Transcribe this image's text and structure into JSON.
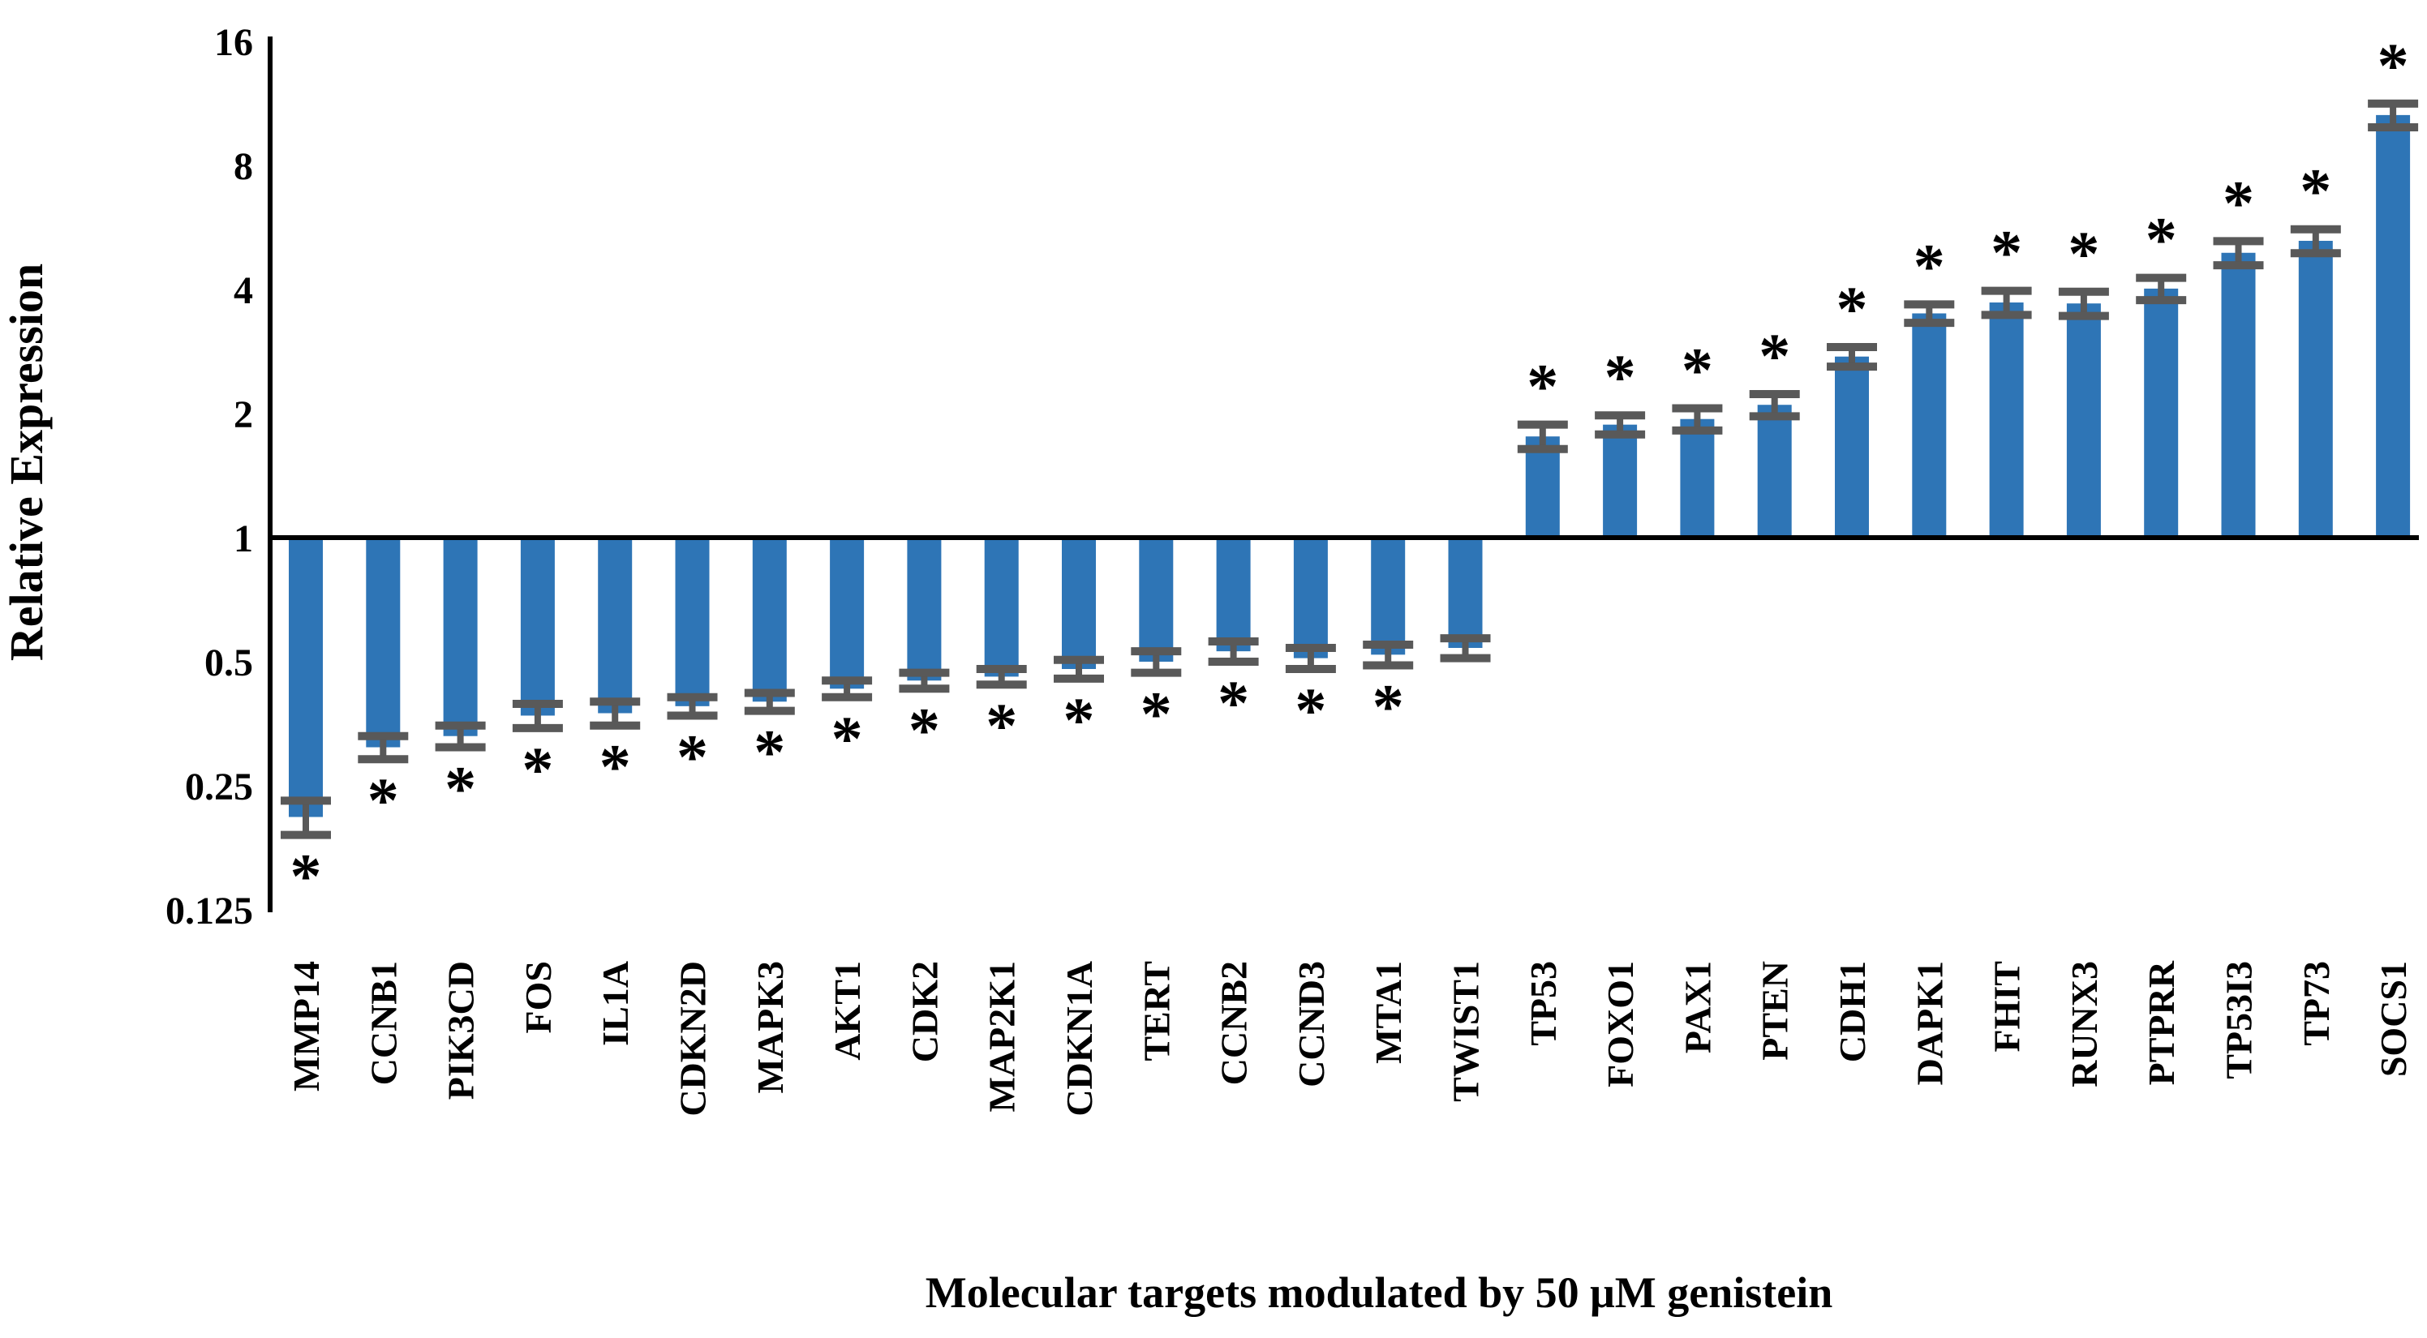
{
  "figure": {
    "background": "#ffffff",
    "bar_color": "#2E75B6",
    "error_bar_color": "#595959",
    "asterisk_color": "#3F3F3F",
    "axis_color": "#000000"
  },
  "chart_data": {
    "type": "bar",
    "title": "",
    "xlabel": "Molecular targets modulated by 50 μM genistein",
    "ylabel": "Relative Expression",
    "y_scale": "log2",
    "baseline_value": 1,
    "ylim": [
      0.125,
      16
    ],
    "y_ticks": [
      16,
      8,
      4,
      2,
      1,
      0.5,
      0.25,
      0.125
    ],
    "y_tick_labels": [
      "16",
      "8",
      "4",
      "2",
      "1",
      "0.5",
      "0.25",
      "0.125"
    ],
    "grid": false,
    "legend": "none",
    "significance_marker": "*",
    "categories": [
      "MMP14",
      "CCNB1",
      "PIK3CD",
      "FOS",
      "IL1A",
      "CDKN2D",
      "MAPK3",
      "AKT1",
      "CDK2",
      "MAP2K1",
      "CDKN1A",
      "TERT",
      "CCNB2",
      "CCND3",
      "MTA1",
      "TWIST1",
      "TP53",
      "FOXO1",
      "PAX1",
      "PTEN",
      "CDH1",
      "DAPK1",
      "FHIT",
      "RUNX3",
      "PTPRR",
      "TP53I3",
      "TP73",
      "SOCS1"
    ],
    "values": [
      0.21,
      0.31,
      0.33,
      0.37,
      0.375,
      0.39,
      0.4,
      0.43,
      0.45,
      0.46,
      0.48,
      0.5,
      0.53,
      0.51,
      0.52,
      0.54,
      1.76,
      1.88,
      1.94,
      2.1,
      2.75,
      3.5,
      3.72,
      3.7,
      4.02,
      4.91,
      5.25,
      10.6
    ],
    "errors": [
      0.02,
      0.02,
      0.02,
      0.025,
      0.025,
      0.02,
      0.02,
      0.02,
      0.02,
      0.02,
      0.025,
      0.03,
      0.03,
      0.03,
      0.03,
      0.03,
      0.12,
      0.1,
      0.12,
      0.13,
      0.15,
      0.18,
      0.25,
      0.25,
      0.25,
      0.33,
      0.35,
      0.7
    ],
    "significant": [
      true,
      true,
      true,
      true,
      true,
      true,
      true,
      true,
      true,
      true,
      true,
      true,
      true,
      true,
      true,
      false,
      true,
      true,
      true,
      true,
      true,
      true,
      true,
      true,
      true,
      true,
      true,
      true
    ]
  }
}
